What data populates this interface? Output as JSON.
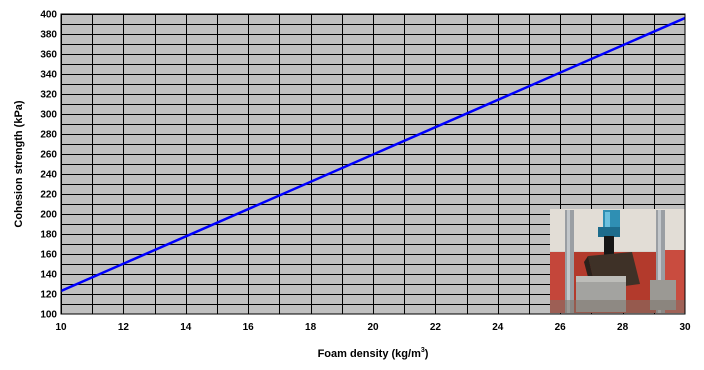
{
  "chart_data": {
    "type": "line",
    "title": "",
    "xlabel": "Foam density (kg/m³)",
    "xlabel_base": "Foam density (kg/m",
    "xlabel_sup": "3",
    "xlabel_tail": ")",
    "ylabel": "Cohesion strength (kPa)",
    "xlim": [
      10,
      30
    ],
    "ylim": [
      100,
      400
    ],
    "x_ticks": [
      10,
      12,
      14,
      16,
      18,
      20,
      22,
      24,
      26,
      28,
      30
    ],
    "y_ticks": [
      100,
      120,
      140,
      160,
      180,
      200,
      220,
      240,
      260,
      280,
      300,
      320,
      340,
      360,
      380,
      400
    ],
    "grid": true,
    "x_minor_step": 1,
    "y_minor_step": 10,
    "series": [
      {
        "x": [
          10,
          30
        ],
        "y": [
          123,
          396
        ]
      }
    ],
    "inset_photo": {
      "subject": "test-specimen-photo"
    },
    "colors": {
      "plot_background": "#c0c0c0",
      "gridline": "#000000",
      "line": "#0000ff"
    }
  }
}
